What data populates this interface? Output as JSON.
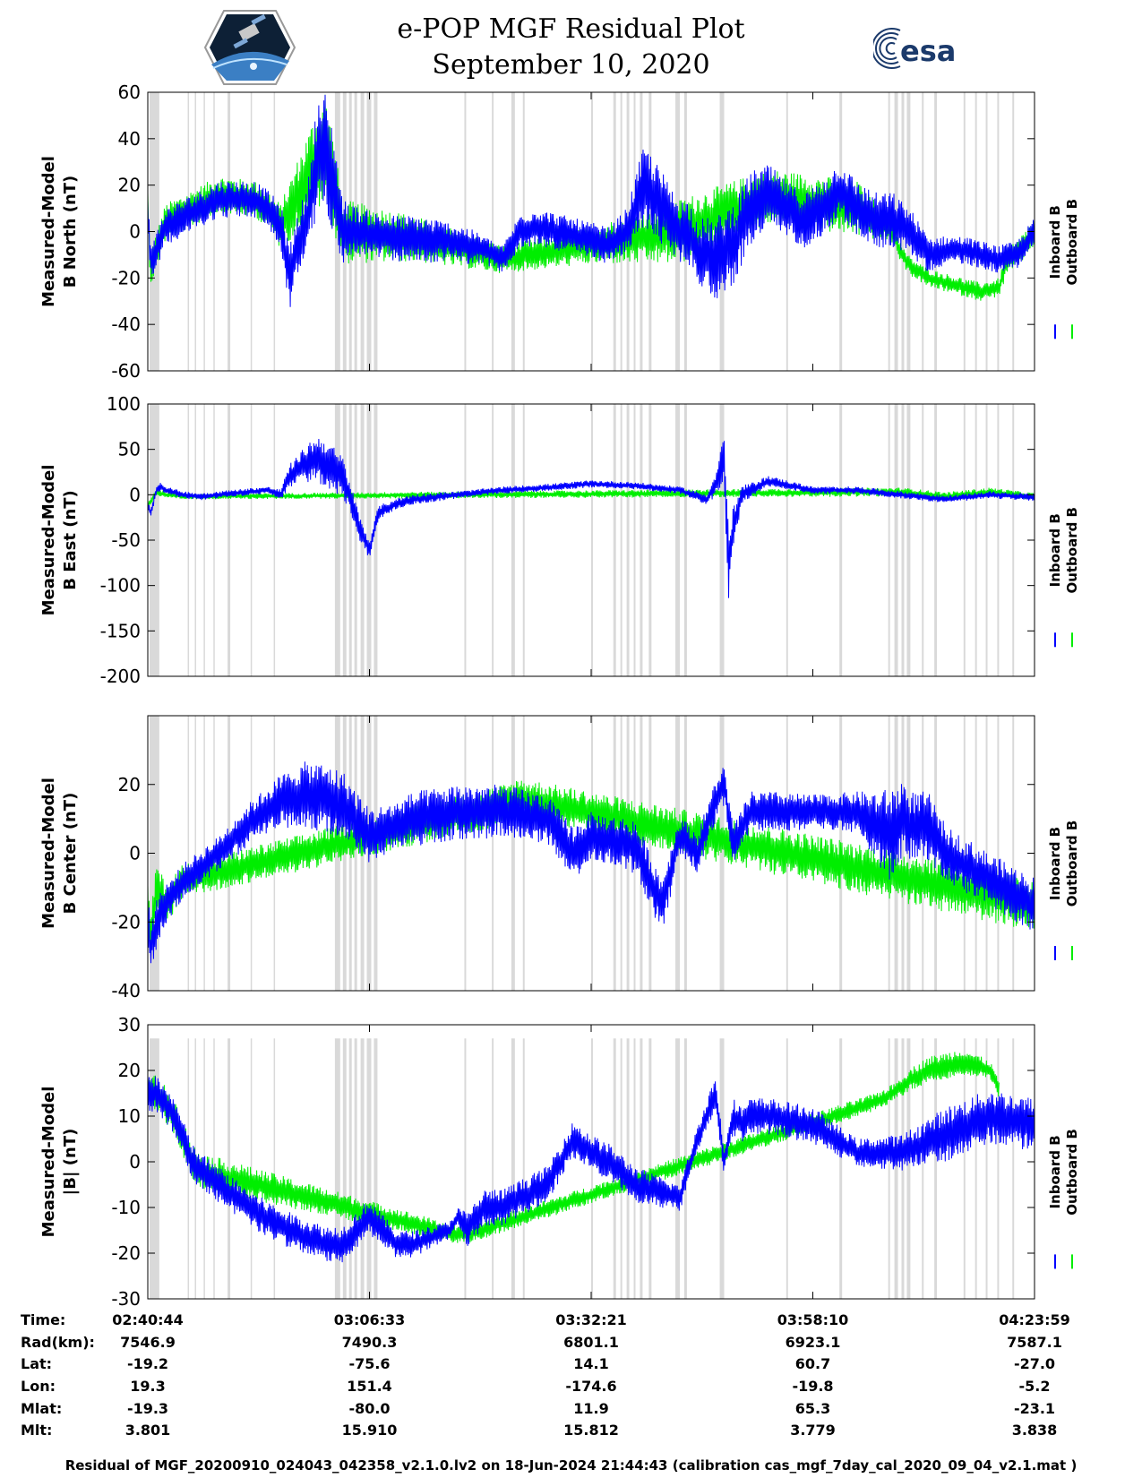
{
  "header": {
    "title_line1": "e-POP MGF Residual Plot",
    "title_line2": "September 10, 2020",
    "left_logo": "cassiope-mission-logo",
    "right_logo_text": "esa"
  },
  "colors": {
    "inboard": "#0000ff",
    "outboard": "#00ee00",
    "gap_shading": "#d9d9d9"
  },
  "legend": {
    "items": [
      "Inboard B",
      "Outboard B"
    ],
    "placement": "right"
  },
  "chart_data": [
    {
      "type": "line",
      "ylabel_line1": "Measured-Model",
      "ylabel_line2": "B North (nT)",
      "ylim": [
        -60,
        60
      ],
      "yticks": [
        -60,
        -40,
        -20,
        0,
        20,
        40,
        60
      ],
      "series": [
        {
          "name": "Inboard B",
          "color": "#0000ff",
          "x": [
            0,
            0.3,
            1,
            2,
            4,
            6,
            8,
            10,
            12,
            13.5,
            15,
            16,
            17,
            18,
            19,
            20,
            21,
            22,
            24,
            26,
            28,
            30,
            32,
            34,
            36,
            38,
            40,
            42,
            44,
            46,
            48,
            50,
            52,
            54,
            56,
            58,
            59,
            60,
            61,
            62,
            64,
            66,
            68,
            70,
            72,
            74,
            76,
            78,
            80,
            82,
            84,
            86,
            88,
            90,
            92,
            94,
            96,
            98,
            100
          ],
          "y": [
            10,
            -12,
            -8,
            2,
            6,
            10,
            14,
            14,
            14,
            10,
            2,
            -20,
            -4,
            5,
            30,
            35,
            20,
            0,
            0,
            -2,
            -3,
            -3,
            -4,
            -4,
            -6,
            -8,
            -12,
            0,
            2,
            0,
            -2,
            -4,
            -6,
            0,
            20,
            10,
            5,
            0,
            0,
            -8,
            -12,
            -5,
            10,
            15,
            10,
            5,
            10,
            18,
            10,
            5,
            5,
            0,
            -10,
            -8,
            -8,
            -10,
            -12,
            -10,
            0
          ],
          "amp": [
            6,
            8,
            8,
            8,
            8,
            8,
            8,
            8,
            8,
            8,
            10,
            14,
            14,
            14,
            25,
            25,
            22,
            14,
            10,
            10,
            10,
            10,
            10,
            8,
            8,
            6,
            6,
            8,
            8,
            8,
            8,
            8,
            8,
            10,
            18,
            16,
            14,
            14,
            14,
            14,
            18,
            18,
            16,
            14,
            12,
            12,
            12,
            12,
            12,
            12,
            12,
            10,
            8,
            6,
            6,
            6,
            6,
            6,
            6
          ]
        },
        {
          "name": "Outboard B",
          "color": "#00ee00",
          "x": [
            0,
            0.3,
            1,
            2,
            4,
            6,
            8,
            10,
            12,
            13.5,
            15,
            20,
            22,
            30,
            40,
            50,
            60,
            70,
            80,
            84,
            85,
            86,
            88,
            90,
            92,
            94,
            96,
            97,
            98,
            100
          ],
          "y": [
            12,
            -16,
            -8,
            4,
            8,
            12,
            16,
            15,
            14,
            10,
            2,
            37,
            0,
            -3,
            -12,
            -6,
            0,
            15,
            10,
            0,
            -10,
            -15,
            -20,
            -22,
            -24,
            -26,
            -24,
            -12,
            -10,
            0
          ],
          "amp": [
            6,
            8,
            8,
            8,
            8,
            8,
            8,
            8,
            8,
            8,
            10,
            25,
            14,
            10,
            6,
            8,
            14,
            12,
            12,
            5,
            4,
            4,
            4,
            4,
            4,
            4,
            4,
            6,
            6,
            6
          ]
        }
      ]
    },
    {
      "type": "line",
      "ylabel_line1": "Measured-Model",
      "ylabel_line2": "B East (nT)",
      "ylim": [
        -200,
        100
      ],
      "yticks": [
        -200,
        -150,
        -100,
        -50,
        0,
        50,
        100
      ],
      "series": [
        {
          "name": "Inboard B",
          "color": "#0000ff",
          "x": [
            0,
            0.3,
            1,
            1.5,
            2,
            4,
            6,
            10,
            13.5,
            15,
            16,
            17,
            18,
            19,
            20,
            22,
            24,
            25,
            26,
            28,
            30,
            35,
            40,
            45,
            50,
            55,
            60,
            63,
            64,
            65,
            65.5,
            66,
            67,
            68,
            70,
            75,
            80,
            85,
            90,
            95,
            100
          ],
          "y": [
            -10,
            -20,
            5,
            10,
            5,
            0,
            -2,
            2,
            5,
            0,
            20,
            30,
            35,
            40,
            35,
            20,
            -40,
            -60,
            -20,
            -10,
            -5,
            0,
            5,
            8,
            12,
            10,
            5,
            -5,
            10,
            40,
            -80,
            -40,
            0,
            5,
            15,
            5,
            5,
            0,
            -5,
            0,
            -3
          ],
          "amp": [
            5,
            5,
            5,
            5,
            4,
            4,
            4,
            4,
            4,
            6,
            14,
            14,
            22,
            25,
            28,
            22,
            14,
            10,
            8,
            6,
            6,
            4,
            4,
            4,
            4,
            4,
            4,
            6,
            12,
            30,
            40,
            25,
            10,
            8,
            6,
            4,
            4,
            4,
            4,
            4,
            4
          ]
        },
        {
          "name": "Outboard B",
          "color": "#00ee00",
          "x": [
            0,
            1,
            2,
            4,
            85,
            90,
            95,
            100
          ],
          "y": [
            -12,
            3,
            0,
            -2,
            3,
            -2,
            3,
            -2
          ],
          "amp": [
            4,
            4,
            4,
            3,
            5,
            5,
            5,
            4
          ]
        }
      ]
    },
    {
      "type": "line",
      "ylabel_line1": "Measured-Model",
      "ylabel_line2": "B Center (nT)",
      "ylim": [
        -40,
        40
      ],
      "yticks": [
        -40,
        -20,
        0,
        20
      ],
      "series": [
        {
          "name": "Inboard B",
          "color": "#0000ff",
          "x": [
            0,
            0.3,
            1,
            2,
            4,
            6,
            8,
            10,
            12,
            15,
            18,
            20,
            22,
            25,
            28,
            30,
            35,
            40,
            45,
            48,
            50,
            52,
            55,
            57,
            58,
            60,
            62,
            64,
            65,
            66,
            68,
            70,
            75,
            80,
            82,
            84,
            85,
            86,
            88,
            90,
            95,
            100
          ],
          "y": [
            -18,
            -28,
            -20,
            -15,
            -8,
            -4,
            0,
            5,
            10,
            15,
            17,
            16,
            14,
            5,
            8,
            10,
            12,
            12,
            10,
            0,
            5,
            4,
            2,
            -10,
            -15,
            5,
            0,
            15,
            20,
            2,
            12,
            12,
            12,
            12,
            8,
            5,
            10,
            8,
            8,
            0,
            -8,
            -15
          ],
          "amp": [
            8,
            6,
            8,
            6,
            5,
            5,
            5,
            6,
            6,
            8,
            10,
            10,
            10,
            8,
            7,
            8,
            8,
            8,
            7,
            8,
            7,
            7,
            8,
            8,
            8,
            6,
            6,
            6,
            6,
            6,
            6,
            6,
            5,
            6,
            10,
            14,
            12,
            10,
            10,
            8,
            8,
            8
          ]
        },
        {
          "name": "Outboard B",
          "color": "#00ee00",
          "x": [
            0,
            0.3,
            1,
            2,
            4,
            40,
            42,
            100
          ],
          "y": [
            -15,
            -25,
            -10,
            -15,
            -8,
            14,
            16,
            -15
          ],
          "amp": [
            8,
            6,
            8,
            6,
            5,
            6,
            6,
            8
          ]
        }
      ]
    },
    {
      "type": "line",
      "ylabel_line1": "Measured-Model",
      "ylabel_line2": "|B| (nT)",
      "ylim": [
        -30,
        30
      ],
      "yticks": [
        -30,
        -20,
        -10,
        0,
        10,
        20,
        30
      ],
      "series": [
        {
          "name": "Inboard B",
          "color": "#0000ff",
          "x": [
            0,
            1,
            3,
            5,
            6,
            8,
            10,
            13,
            16,
            20,
            22,
            25,
            28,
            30,
            34,
            35,
            36,
            38,
            40,
            45,
            48,
            50,
            52,
            55,
            60,
            62,
            64,
            65,
            66,
            67,
            68,
            70,
            75,
            80,
            85,
            90,
            95,
            100
          ],
          "y": [
            15,
            15,
            10,
            0,
            -2,
            -5,
            -8,
            -12,
            -15,
            -18,
            -18,
            -12,
            -18,
            -18,
            -15,
            -12,
            -15,
            -10,
            -10,
            -5,
            5,
            2,
            0,
            -5,
            -8,
            5,
            15,
            0,
            10,
            8,
            10,
            10,
            8,
            2,
            2,
            6,
            10,
            8
          ],
          "amp": [
            4,
            4,
            4,
            4,
            4,
            4,
            4,
            4,
            4,
            4,
            4,
            4,
            3,
            3,
            2,
            2,
            4,
            4,
            4,
            4,
            4,
            4,
            4,
            4,
            3,
            3,
            4,
            3,
            4,
            4,
            4,
            4,
            4,
            3,
            4,
            6,
            6,
            6
          ]
        },
        {
          "name": "Outboard B",
          "color": "#00ee00",
          "x": [
            0,
            1,
            3,
            5,
            6,
            35,
            36,
            82,
            84,
            86,
            88,
            90,
            92,
            95,
            96
          ],
          "y": [
            15,
            15,
            10,
            0,
            -2,
            -16,
            -16,
            13,
            15,
            18,
            20,
            21,
            22,
            20,
            16
          ],
          "amp": [
            4,
            4,
            4,
            4,
            4,
            2,
            2,
            2,
            2,
            2.5,
            3,
            3,
            3,
            2,
            2
          ]
        }
      ]
    }
  ],
  "time_axis": {
    "row_labels": [
      "Time:",
      "Rad(km):",
      "Lat:",
      "Lon:",
      "Mlat:",
      "Mlt:"
    ],
    "ticks": [
      {
        "time": "02:40:44",
        "rad": "7546.9",
        "lat": "-19.2",
        "lon": "19.3",
        "mlat": "-19.3",
        "mlt": "3.801"
      },
      {
        "time": "03:06:33",
        "rad": "7490.3",
        "lat": "-75.6",
        "lon": "151.4",
        "mlat": "-80.0",
        "mlt": "15.910"
      },
      {
        "time": "03:32:21",
        "rad": "6801.1",
        "lat": "14.1",
        "lon": "-174.6",
        "mlat": "11.9",
        "mlt": "15.812"
      },
      {
        "time": "03:58:10",
        "rad": "6923.1",
        "lat": "60.7",
        "lon": "-19.8",
        "mlat": "65.3",
        "mlt": "3.779"
      },
      {
        "time": "04:23:59",
        "rad": "7587.1",
        "lat": "-27.0",
        "lon": "-5.2",
        "mlat": "-23.1",
        "mlt": "3.838"
      }
    ]
  },
  "gaps": [
    [
      0.2,
      1.3
    ],
    [
      4.5,
      4.6
    ],
    [
      5.3,
      5.4
    ],
    [
      6.3,
      6.4
    ],
    [
      7.4,
      7.5
    ],
    [
      9.0,
      9.3
    ],
    [
      11.6,
      11.7
    ],
    [
      14.2,
      14.3
    ],
    [
      21.1,
      21.7
    ],
    [
      22.0,
      22.4
    ],
    [
      22.7,
      23.0
    ],
    [
      23.3,
      23.6
    ],
    [
      24.0,
      24.4
    ],
    [
      24.7,
      25.2
    ],
    [
      25.5,
      25.9
    ],
    [
      35.7,
      35.9
    ],
    [
      38.8,
      39.0
    ],
    [
      41.0,
      41.4
    ],
    [
      42.3,
      42.5
    ],
    [
      50.0,
      50.2
    ],
    [
      52.5,
      52.8
    ],
    [
      53.3,
      53.5
    ],
    [
      54.0,
      54.3
    ],
    [
      54.8,
      55.0
    ],
    [
      55.5,
      55.8
    ],
    [
      56.5,
      56.8
    ],
    [
      59.5,
      60.0
    ],
    [
      60.5,
      60.8
    ],
    [
      64.5,
      65.0
    ],
    [
      72.0,
      72.2
    ],
    [
      78.0,
      78.3
    ],
    [
      83.5,
      83.7
    ],
    [
      84.2,
      84.6
    ],
    [
      85.0,
      85.3
    ],
    [
      85.6,
      86.0
    ],
    [
      87.3,
      87.5
    ],
    [
      88.7,
      89.0
    ],
    [
      92.0,
      92.2
    ],
    [
      93.3,
      93.5
    ],
    [
      94.5,
      94.7
    ],
    [
      95.8,
      96.0
    ],
    [
      97.5,
      97.7
    ]
  ],
  "footer": "Residual of MGF_20200910_024043_042358_v2.1.0.lv2 on 18-Jun-2024 21:44:43 (calibration cas_mgf_7day_cal_2020_09_04_v2.1.mat )"
}
